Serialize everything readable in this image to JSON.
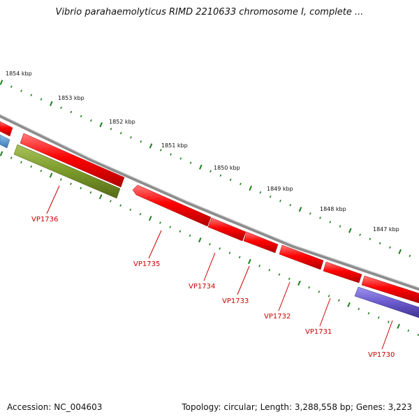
{
  "title": "Vibrio parahaemolyticus RIMD 2210633 chromosome I, complete ...",
  "footer": {
    "accession": "Accession: NC_004603",
    "summary": "Topology: circular; Length: 3,288,558 bp; Genes: 3,223"
  },
  "ruler": {
    "labels": [
      "1854 kbp",
      "1853 kbp",
      "1852 kbp",
      "1851 kbp",
      "1850 kbp",
      "1849 kbp",
      "1848 kbp",
      "1847 kbp"
    ],
    "tick_color": "#1a7f1a"
  },
  "genes": [
    {
      "label": "VP1736",
      "color": "#7a9a2a",
      "strand": "minus"
    },
    {
      "label": "VP1735",
      "color": "#ff0000",
      "strand": "plus"
    },
    {
      "label": "VP1734",
      "color": "#ff0000",
      "strand": "plus"
    },
    {
      "label": "VP1733",
      "color": "#ff0000",
      "strand": "plus"
    },
    {
      "label": "VP1732",
      "color": "#ff0000",
      "strand": "plus"
    },
    {
      "label": "VP1731",
      "color": "#ff0000",
      "strand": "plus"
    },
    {
      "label": "VP1730",
      "color": "#6a5acd",
      "strand": "minus"
    }
  ],
  "colors": {
    "backbone": "#8c8c8c",
    "gene_red": "#ff0000",
    "gene_green": "#7a9a2a",
    "gene_purple": "#6a5acd",
    "gene_blue": "#4f8fc8",
    "label_red": "#cc0000"
  }
}
